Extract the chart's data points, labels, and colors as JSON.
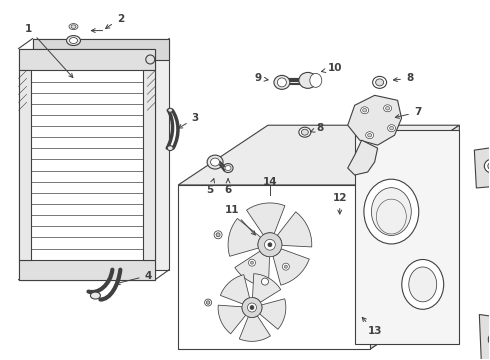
{
  "bg_color": "#ffffff",
  "line_color": "#404040",
  "label_color": "#1a1a1a",
  "fig_width": 4.9,
  "fig_height": 3.6,
  "dpi": 100
}
